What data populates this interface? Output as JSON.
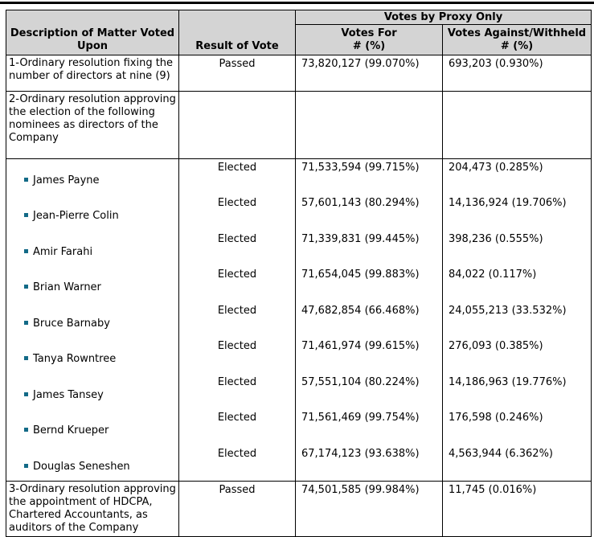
{
  "colors": {
    "header_bg": "#d4d4d4",
    "border": "#000000",
    "text": "#000000",
    "bullet": "#136a87"
  },
  "table": {
    "header": {
      "description": "Description of Matter Voted Upon",
      "result": "Result of Vote",
      "proxy_group": "Votes by Proxy Only",
      "votes_for": "Votes For",
      "votes_for_unit": "# (%)",
      "votes_against": "Votes Against/Withheld",
      "votes_against_unit": "# (%)"
    },
    "rows": [
      {
        "type": "matter",
        "description": "1-Ordinary resolution fixing the number of directors at nine (9)",
        "result": "Passed",
        "votes_for": "73,820,127 (99.070%)",
        "votes_against": "693,203 (0.930%)"
      },
      {
        "type": "matter",
        "description": "2-Ordinary resolution approving the election of the following nominees as directors of the Company",
        "result": "",
        "votes_for": "",
        "votes_against": ""
      },
      {
        "type": "nominee",
        "name": "James Payne",
        "result": "Elected",
        "votes_for": "71,533,594 (99.715%)",
        "votes_against": "204,473 (0.285%)"
      },
      {
        "type": "nominee",
        "name": "Jean-Pierre Colin",
        "result": "Elected",
        "votes_for": "57,601,143 (80.294%)",
        "votes_against": "14,136,924 (19.706%)"
      },
      {
        "type": "nominee",
        "name": "Amir Farahi",
        "result": "Elected",
        "votes_for": "71,339,831 (99.445%)",
        "votes_against": "398,236 (0.555%)"
      },
      {
        "type": "nominee",
        "name": "Brian Warner",
        "result": "Elected",
        "votes_for": "71,654,045 (99.883%)",
        "votes_against": "84,022 (0.117%)"
      },
      {
        "type": "nominee",
        "name": "Bruce Barnaby",
        "result": "Elected",
        "votes_for": "47,682,854 (66.468%)",
        "votes_against": "24,055,213 (33.532%)"
      },
      {
        "type": "nominee",
        "name": "Tanya Rowntree",
        "result": "Elected",
        "votes_for": "71,461,974 (99.615%)",
        "votes_against": "276,093 (0.385%)"
      },
      {
        "type": "nominee",
        "name": "James Tansey",
        "result": "Elected",
        "votes_for": "57,551,104 (80.224%)",
        "votes_against": "14,186,963 (19.776%)"
      },
      {
        "type": "nominee",
        "name": "Bernd Krueper",
        "result": "Elected",
        "votes_for": "71,561,469 (99.754%)",
        "votes_against": "176,598 (0.246%)"
      },
      {
        "type": "nominee",
        "name": "Douglas Seneshen",
        "result": "Elected",
        "votes_for": "67,174,123 (93.638%)",
        "votes_against": "4,563,944 (6.362%)"
      },
      {
        "type": "matter",
        "description": "3-Ordinary resolution approving the appointment of HDCPA, Chartered Accountants, as auditors of the Company",
        "result": "Passed",
        "votes_for": "74,501,585 (99.984%)",
        "votes_against": "11,745 (0.016%)"
      }
    ]
  }
}
